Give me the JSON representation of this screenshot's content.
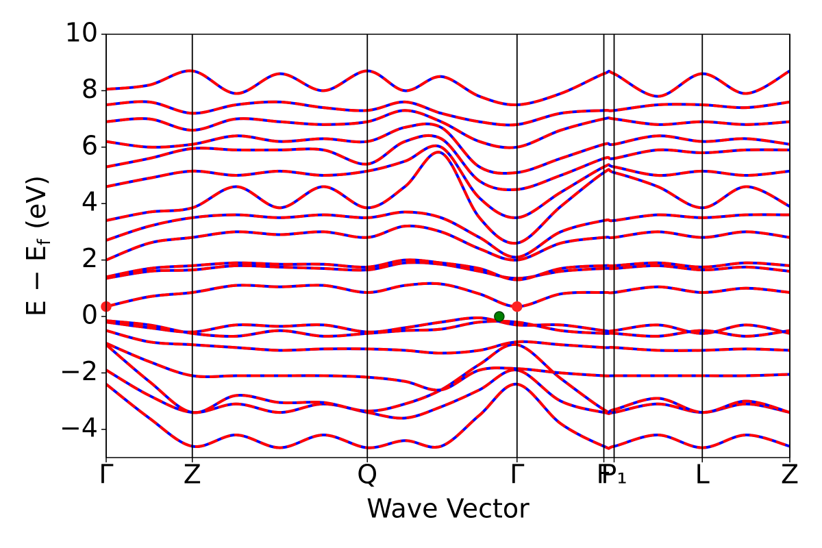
{
  "chart_data": {
    "type": "line",
    "xlabel": "Wave Vector",
    "ylabel": {
      "main": "E − E",
      "sub": "f",
      "unit": "(eV)"
    },
    "xlim": [
      0,
      1
    ],
    "xticks": [
      {
        "value": 0,
        "label": "Γ"
      },
      {
        "value": 0.126,
        "label": "Z"
      },
      {
        "value": 0.382,
        "label": "Q"
      },
      {
        "value": 0.601,
        "label": "Γ"
      },
      {
        "value": 0.728,
        "label": "F"
      },
      {
        "value": 0.743,
        "label": "P₁"
      },
      {
        "value": 0.872,
        "label": "L"
      },
      {
        "value": 1,
        "label": "Z"
      }
    ],
    "ylim": [
      -5,
      10
    ],
    "yticks": [
      {
        "value": -4,
        "label": "−4"
      },
      {
        "value": -2,
        "label": "−2"
      },
      0,
      2,
      4,
      6,
      8,
      10
    ],
    "line_color": "#0000ff",
    "dash_color": "#ff0000",
    "vline_color": "#000000",
    "x": [
      0,
      0.063,
      0.126,
      0.19,
      0.254,
      0.318,
      0.382,
      0.437,
      0.49,
      0.546,
      0.601,
      0.665,
      0.728,
      0.743,
      0.807,
      0.872,
      0.936,
      1.0
    ],
    "series": [
      {
        "values": [
          -2.4,
          -3.6,
          -4.6,
          -4.2,
          -4.65,
          -4.2,
          -4.65,
          -4.4,
          -4.6,
          -3.5,
          -2.4,
          -3.8,
          -4.6,
          -4.6,
          -4.2,
          -4.65,
          -4.2,
          -4.6
        ]
      },
      {
        "values": [
          -1.9,
          -2.8,
          -3.4,
          -3.1,
          -3.4,
          -3.1,
          -3.4,
          -3.6,
          -3.2,
          -2.6,
          -1.9,
          -3.0,
          -3.4,
          -3.4,
          -3.1,
          -3.4,
          -3.1,
          -3.4
        ]
      },
      {
        "values": [
          -1.0,
          -2.3,
          -3.4,
          -2.8,
          -3.05,
          -3.05,
          -3.35,
          -3.1,
          -2.6,
          -1.7,
          -1.0,
          -2.2,
          -3.3,
          -3.3,
          -2.9,
          -3.4,
          -3.0,
          -3.4
        ]
      },
      {
        "values": [
          -0.95,
          -1.6,
          -2.1,
          -2.1,
          -2.1,
          -2.1,
          -2.15,
          -2.3,
          -2.6,
          -1.9,
          -1.85,
          -2.0,
          -2.1,
          -2.1,
          -2.1,
          -2.1,
          -2.1,
          -2.05
        ]
      },
      {
        "values": [
          -0.5,
          -0.9,
          -1.0,
          -1.1,
          -1.2,
          -1.15,
          -1.15,
          -1.2,
          -1.3,
          -1.2,
          -0.9,
          -1.0,
          -1.1,
          -1.1,
          -1.2,
          -1.2,
          -1.15,
          -1.2
        ]
      },
      {
        "values": [
          -0.2,
          -0.4,
          -0.55,
          -0.3,
          -0.35,
          -0.3,
          -0.55,
          -0.4,
          -0.2,
          -0.05,
          -0.3,
          -0.3,
          -0.5,
          -0.5,
          -0.3,
          -0.6,
          -0.3,
          -0.6
        ]
      },
      {
        "values": [
          -0.15,
          -0.3,
          -0.6,
          -0.7,
          -0.5,
          -0.7,
          -0.6,
          -0.5,
          -0.45,
          -0.2,
          -0.2,
          -0.5,
          -0.6,
          -0.6,
          -0.7,
          -0.5,
          -0.7,
          -0.5
        ]
      },
      {
        "values": [
          0.35,
          0.7,
          0.85,
          1.1,
          1.05,
          1.1,
          0.85,
          1.1,
          1.15,
          0.8,
          0.35,
          0.8,
          0.85,
          0.85,
          1.05,
          0.85,
          1.0,
          0.85
        ]
      },
      {
        "values": [
          1.35,
          1.6,
          1.65,
          1.8,
          1.75,
          1.7,
          1.65,
          1.9,
          1.85,
          1.6,
          1.35,
          1.6,
          1.7,
          1.7,
          1.8,
          1.65,
          1.75,
          1.6
        ]
      },
      {
        "values": [
          1.4,
          1.7,
          1.8,
          1.9,
          1.85,
          1.85,
          1.75,
          2.0,
          1.9,
          1.7,
          1.3,
          1.7,
          1.8,
          1.8,
          1.9,
          1.75,
          1.9,
          1.8
        ]
      },
      {
        "values": [
          2.0,
          2.6,
          2.8,
          3.0,
          2.9,
          3.0,
          2.8,
          3.2,
          3.0,
          2.4,
          2.0,
          2.6,
          2.8,
          2.8,
          3.0,
          2.8,
          3.0,
          2.8
        ]
      },
      {
        "values": [
          2.7,
          3.2,
          3.5,
          3.6,
          3.5,
          3.6,
          3.5,
          3.7,
          3.5,
          2.8,
          2.1,
          3.0,
          3.4,
          3.4,
          3.6,
          3.5,
          3.6,
          3.6
        ]
      },
      {
        "values": [
          3.4,
          3.7,
          3.85,
          4.6,
          3.85,
          4.6,
          3.85,
          4.6,
          5.8,
          3.5,
          2.6,
          3.9,
          5.1,
          5.1,
          4.6,
          3.85,
          4.6,
          3.9
        ]
      },
      {
        "values": [
          4.6,
          4.9,
          5.15,
          5.0,
          5.15,
          5.0,
          5.15,
          5.5,
          6.0,
          4.2,
          3.5,
          4.4,
          5.3,
          5.3,
          5.0,
          5.15,
          5.0,
          5.15
        ]
      },
      {
        "values": [
          5.3,
          5.6,
          5.95,
          5.9,
          5.9,
          5.9,
          5.4,
          6.2,
          6.3,
          4.8,
          4.5,
          5.0,
          5.6,
          5.6,
          5.9,
          5.8,
          5.9,
          5.9
        ]
      },
      {
        "values": [
          6.2,
          6.0,
          6.1,
          6.4,
          6.2,
          6.3,
          6.2,
          6.7,
          6.7,
          5.3,
          5.1,
          5.6,
          6.1,
          6.1,
          6.4,
          6.2,
          6.3,
          6.1
        ]
      },
      {
        "values": [
          6.9,
          7.0,
          6.6,
          7.0,
          6.9,
          6.8,
          6.9,
          7.3,
          6.9,
          6.2,
          6.0,
          6.6,
          7.0,
          7.0,
          6.8,
          6.9,
          6.8,
          6.9
        ]
      },
      {
        "values": [
          7.5,
          7.6,
          7.2,
          7.5,
          7.6,
          7.4,
          7.3,
          7.6,
          7.2,
          6.9,
          6.8,
          7.2,
          7.3,
          7.3,
          7.5,
          7.5,
          7.4,
          7.6
        ]
      },
      {
        "values": [
          8.05,
          8.2,
          8.7,
          7.9,
          8.6,
          8.0,
          8.7,
          8.0,
          8.5,
          7.8,
          7.5,
          7.9,
          8.6,
          8.6,
          7.8,
          8.6,
          7.9,
          8.7
        ]
      }
    ],
    "points": [
      {
        "x": 0,
        "y": 0.35,
        "color": "#ff2020"
      },
      {
        "x": 0.601,
        "y": 0.35,
        "color": "#ff2020"
      },
      {
        "x": 0.575,
        "y": 0,
        "color": "#008000"
      }
    ]
  }
}
